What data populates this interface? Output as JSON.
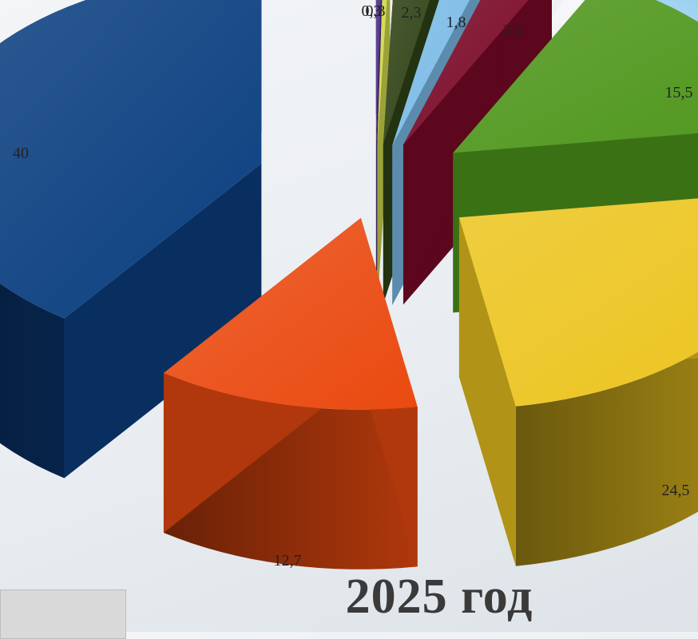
{
  "title": "2025 год",
  "chart_data": {
    "type": "pie",
    "values": [
      40,
      12.7,
      24.5,
      15.5,
      2.6,
      1.8,
      2.3,
      0.3,
      0.3
    ],
    "labels": [
      "40",
      "12,7",
      "24,5",
      "15,5",
      "2,6",
      "1,8",
      "2,3",
      "0,3",
      "0,3"
    ],
    "colors": [
      "#0b3f80",
      "#ea4a10",
      "#ecc41e",
      "#4f961c",
      "#7a0928",
      "#7bbbe6",
      "#2f4215",
      "#cfd84a",
      "#4c2b84"
    ],
    "exploded": true,
    "three_d": true
  }
}
